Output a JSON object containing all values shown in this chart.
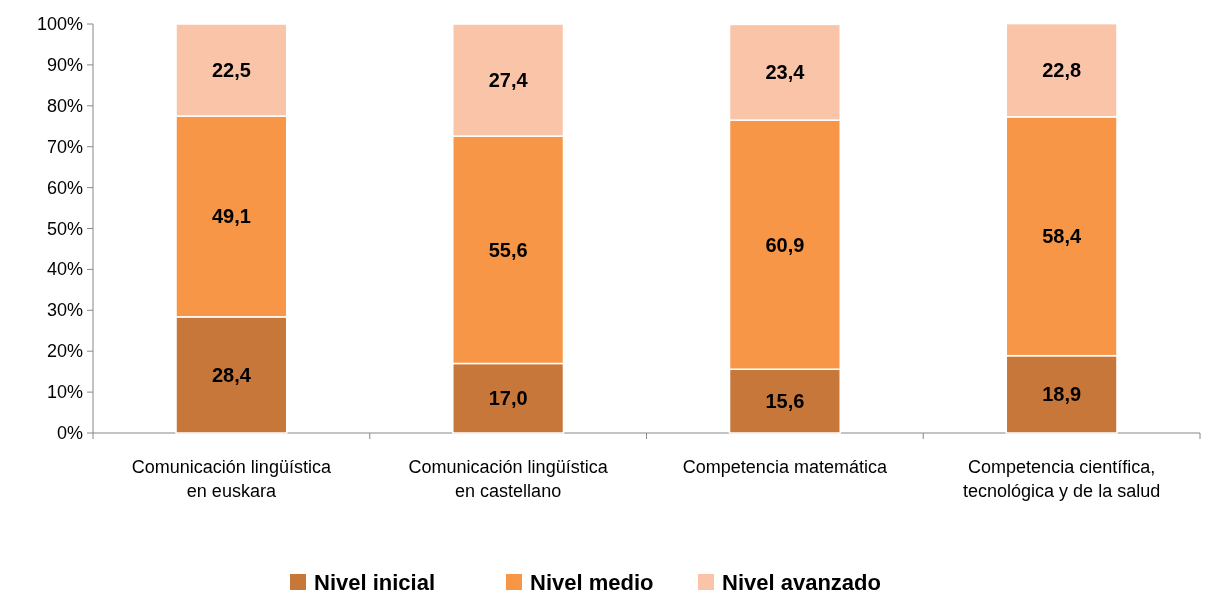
{
  "chart_data": {
    "type": "bar",
    "stacked": true,
    "categories": [
      "Comunicación lingüística en euskara",
      "Comunicación lingüística en castellano",
      "Competencia matemática",
      "Competencia científica, tecnológica y de la salud"
    ],
    "series": [
      {
        "name": "Nivel inicial",
        "color": "#c8773a",
        "values": [
          28.4,
          17.0,
          15.6,
          18.9
        ],
        "value_labels": [
          "28,4",
          "17,0",
          "15,6",
          "18,9"
        ]
      },
      {
        "name": "Nivel medio",
        "color": "#f79646",
        "values": [
          49.1,
          55.6,
          60.9,
          58.4
        ],
        "value_labels": [
          "49,1",
          "55,6",
          "60,9",
          "58,4"
        ]
      },
      {
        "name": "Nivel avanzado",
        "color": "#fac4a8",
        "values": [
          22.5,
          27.4,
          23.4,
          22.8
        ],
        "value_labels": [
          "22,5",
          "27,4",
          "23,4",
          "22,8"
        ]
      }
    ],
    "ylim": [
      0,
      100
    ],
    "yticks": [
      {
        "value": 0,
        "label": "0%"
      },
      {
        "value": 10,
        "label": "10%"
      },
      {
        "value": 20,
        "label": "20%"
      },
      {
        "value": 30,
        "label": "30%"
      },
      {
        "value": 40,
        "label": "40%"
      },
      {
        "value": 50,
        "label": "50%"
      },
      {
        "value": 60,
        "label": "60%"
      },
      {
        "value": 70,
        "label": "70%"
      },
      {
        "value": 80,
        "label": "80%"
      },
      {
        "value": 90,
        "label": "90%"
      },
      {
        "value": 100,
        "label": "100%"
      }
    ],
    "legend": "bottom"
  }
}
